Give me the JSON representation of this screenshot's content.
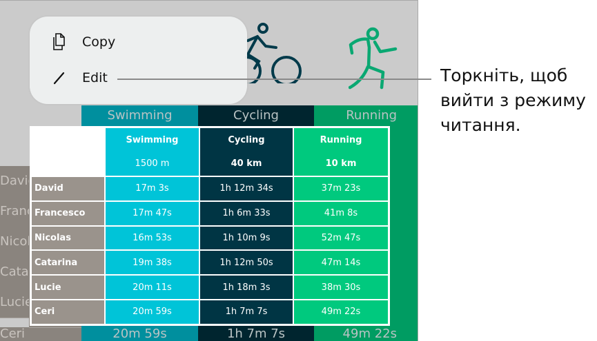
{
  "menu": {
    "items": [
      {
        "label": "Copy",
        "icon": "copy-icon"
      },
      {
        "label": "Edit",
        "icon": "pencil-icon"
      }
    ]
  },
  "callout": {
    "lines": [
      "Торкніть, щоб",
      "вийти з режиму",
      "читання."
    ]
  },
  "icons": {
    "cycling": "cyclist-icon",
    "running": "runner-icon"
  },
  "colors": {
    "swimming": "#00c4d8",
    "cycling": "#003544",
    "running": "#00c97e",
    "names": "#9a938c",
    "bg_swimming": "#008f9e",
    "bg_cycling": "#00252f",
    "bg_running": "#009c62"
  },
  "table": {
    "columns": [
      {
        "name": "Swimming",
        "distance": "1500 m"
      },
      {
        "name": "Cycling",
        "distance": "40 km"
      },
      {
        "name": "Running",
        "distance": "10 km"
      }
    ],
    "rows": [
      {
        "name": "David",
        "times": [
          "17m 3s",
          "1h 12m 34s",
          "37m 23s"
        ]
      },
      {
        "name": "Francesco",
        "times": [
          "17m 47s",
          "1h 6m 33s",
          "41m 8s"
        ]
      },
      {
        "name": "Nicolas",
        "times": [
          "16m 53s",
          "1h 10m 9s",
          "52m 47s"
        ]
      },
      {
        "name": "Catarina",
        "times": [
          "19m 38s",
          "1h 12m 50s",
          "47m 14s"
        ]
      },
      {
        "name": "Lucie",
        "times": [
          "20m 11s",
          "1h 18m 3s",
          "38m 30s"
        ]
      },
      {
        "name": "Ceri",
        "times": [
          "20m 59s",
          "1h 7m 7s",
          "49m 22s"
        ]
      }
    ]
  }
}
